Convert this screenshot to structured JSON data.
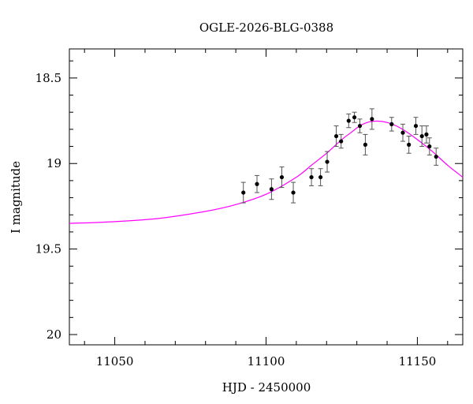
{
  "chart_data": {
    "type": "scatter",
    "title": "OGLE-2026-BLG-0388",
    "xlabel": "HJD - 2450000",
    "ylabel": "I magnitude",
    "xlim": [
      11035,
      11165
    ],
    "ylim": [
      20.06,
      18.33
    ],
    "y_inverted": true,
    "grid": false,
    "x_ticks": [
      {
        "value": 11050,
        "label": "11050"
      },
      {
        "value": 11100,
        "label": "11100"
      },
      {
        "value": 11150,
        "label": "11150"
      }
    ],
    "y_ticks": [
      {
        "value": 18.5,
        "label": "18.5"
      },
      {
        "value": 19,
        "label": "19"
      },
      {
        "value": 19.5,
        "label": "19.5"
      },
      {
        "value": 20,
        "label": "20"
      }
    ],
    "x_minor_step": 10,
    "y_minor_step": 0.1,
    "series": [
      {
        "kind": "points",
        "color": "#000000",
        "points": [
          {
            "x": 11092.5,
            "y": 19.17,
            "err": 0.06
          },
          {
            "x": 11097.0,
            "y": 19.12,
            "err": 0.05
          },
          {
            "x": 11101.8,
            "y": 19.15,
            "err": 0.06
          },
          {
            "x": 11105.2,
            "y": 19.08,
            "err": 0.06
          },
          {
            "x": 11109.0,
            "y": 19.17,
            "err": 0.06
          },
          {
            "x": 11115.0,
            "y": 19.08,
            "err": 0.05
          },
          {
            "x": 11118.0,
            "y": 19.08,
            "err": 0.05
          },
          {
            "x": 11120.2,
            "y": 18.99,
            "err": 0.06
          },
          {
            "x": 11123.2,
            "y": 18.84,
            "err": 0.06
          },
          {
            "x": 11124.8,
            "y": 18.87,
            "err": 0.04
          },
          {
            "x": 11127.3,
            "y": 18.75,
            "err": 0.04
          },
          {
            "x": 11129.2,
            "y": 18.73,
            "err": 0.03
          },
          {
            "x": 11131.0,
            "y": 18.78,
            "err": 0.04
          },
          {
            "x": 11132.8,
            "y": 18.89,
            "err": 0.06
          },
          {
            "x": 11135.0,
            "y": 18.74,
            "err": 0.06
          },
          {
            "x": 11141.5,
            "y": 18.77,
            "err": 0.04
          },
          {
            "x": 11145.2,
            "y": 18.82,
            "err": 0.05
          },
          {
            "x": 11147.2,
            "y": 18.89,
            "err": 0.05
          },
          {
            "x": 11149.5,
            "y": 18.78,
            "err": 0.05
          },
          {
            "x": 11151.5,
            "y": 18.84,
            "err": 0.06
          },
          {
            "x": 11153.0,
            "y": 18.83,
            "err": 0.05
          },
          {
            "x": 11154.0,
            "y": 18.9,
            "err": 0.05
          },
          {
            "x": 11156.2,
            "y": 18.96,
            "err": 0.05
          }
        ]
      },
      {
        "kind": "model-curve",
        "color": "#ff00ff",
        "x": [
          11035,
          11050,
          11065,
          11080,
          11090,
          11100,
          11110,
          11115,
          11120,
          11125,
          11128,
          11131,
          11134,
          11137,
          11140,
          11143,
          11146,
          11150,
          11155,
          11160,
          11165
        ],
        "y": [
          19.35,
          19.34,
          19.32,
          19.28,
          19.24,
          19.18,
          19.08,
          19.01,
          18.94,
          18.86,
          18.82,
          18.78,
          18.757,
          18.752,
          18.76,
          18.78,
          18.81,
          18.86,
          18.93,
          19.01,
          19.08
        ]
      }
    ]
  }
}
